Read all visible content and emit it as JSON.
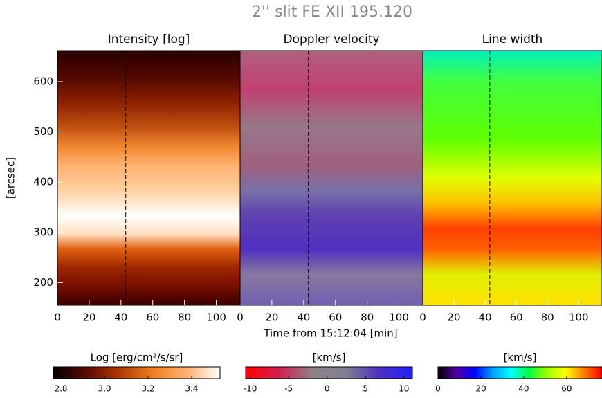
{
  "title": "2'' slit  FE XII 195.120",
  "xlabel": "Time from 15:12:04 [min]",
  "ylabel": "[arcsec]",
  "chart_data": [
    {
      "type": "image",
      "title": "Intensity [log]",
      "xlim": [
        0,
        115
      ],
      "ylim": [
        155,
        662
      ],
      "xticks": [
        0,
        20,
        40,
        60,
        80,
        100
      ],
      "yticks": [
        200,
        300,
        400,
        500,
        600
      ],
      "marker_x": 43
    },
    {
      "type": "image",
      "title": "Doppler velocity",
      "xlim": [
        0,
        115
      ],
      "ylim": [
        155,
        662
      ],
      "xticks": [
        0,
        20,
        40,
        60,
        80,
        100
      ],
      "marker_x": 43
    },
    {
      "type": "image",
      "title": "Line width",
      "xlim": [
        0,
        115
      ],
      "ylim": [
        155,
        662
      ],
      "xticks": [
        0,
        20,
        40,
        60,
        80,
        100
      ],
      "marker_x": 43
    }
  ],
  "colorbars": [
    {
      "label": "Log [erg/cm²/s/sr]",
      "lim": [
        2.765,
        3.53
      ],
      "ticks": [
        2.8,
        {
          "value": 3,
          "label": "3.0"
        },
        3.2,
        3.4
      ],
      "colors": [
        "#000000",
        "#5a0a00",
        "#b03a00",
        "#f08020",
        "#ffb070",
        "#ffffff"
      ]
    },
    {
      "label": "[km/s]",
      "lim": [
        -10.6,
        11.1
      ],
      "ticks": [
        -10,
        -5,
        0,
        5,
        10
      ],
      "colors": [
        "#ff0000",
        "#d02050",
        "#908088",
        "#808090",
        "#5030c0",
        "#2020ff"
      ]
    },
    {
      "label": "[km/s]",
      "lim": [
        0,
        76.5
      ],
      "ticks": [
        0,
        20,
        40,
        60
      ],
      "colors": [
        "#000000",
        "#5000a0",
        "#0000ff",
        "#00a0ff",
        "#00ffff",
        "#00ff40",
        "#a0ff00",
        "#ffff00",
        "#ff8000",
        "#ff0000"
      ]
    }
  ]
}
